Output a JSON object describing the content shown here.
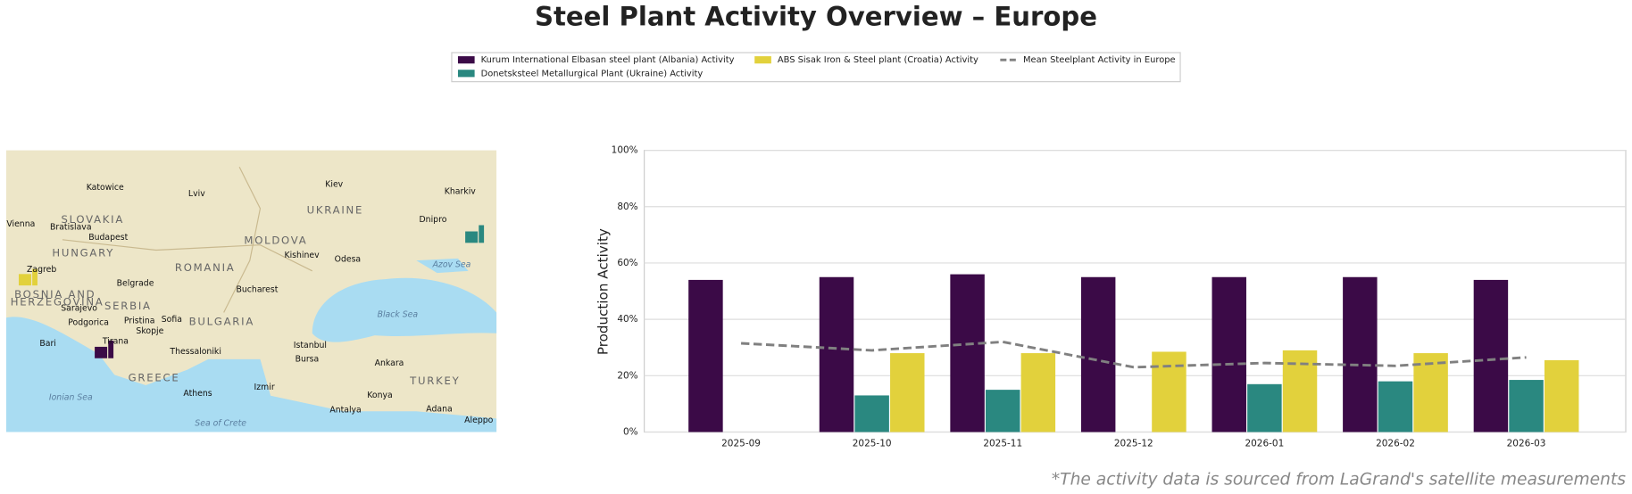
{
  "title": "Steel Plant Activity Overview – Europe",
  "footnote": "*The activity data is sourced from LaGrand's satellite measurements",
  "map": {
    "labels": [
      "Katowice",
      "Lviv",
      "Kiev",
      "Kharkiv",
      "UKRAINE",
      "SLOVAKIA",
      "Vienna",
      "Bratislava",
      "Dnipro",
      "HUNGARY",
      "Budapest",
      "MOLDOVA",
      "Kishinev",
      "Odesa",
      "ROMANIA",
      "Azov Sea",
      "Zagreb",
      "Belgrade",
      "Bucharest",
      "BOSNIA AND",
      "HERZEGOVINA",
      "Sarajevo",
      "SERBIA",
      "Sofia",
      "Black Sea",
      "BULGARIA",
      "Podgorica",
      "Pristina",
      "Skopje",
      "Tirana",
      "Bari",
      "Istanbul",
      "Thessaloniki",
      "Bursa",
      "Ankara",
      "GREECE",
      "Izmir",
      "TURKEY",
      "Ionian Sea",
      "Athens",
      "Konya",
      "Antalya",
      "Adana",
      "Sea of Crete",
      "Aleppo"
    ]
  },
  "chart_data": {
    "type": "bar",
    "y_label": "Production Activity",
    "categories": [
      "2025-09",
      "2025-10",
      "2025-11",
      "2025-12",
      "2026-01",
      "2026-02",
      "2026-03"
    ],
    "series": [
      {
        "name": "Kurum International Elbasan steel plant (Albania) Activity",
        "color": "#3b0a47",
        "values": [
          54,
          55,
          56,
          55,
          55,
          55,
          54
        ]
      },
      {
        "name": "Donetsksteel Metallurgical Plant (Ukraine) Activity",
        "color": "#2a8880",
        "values": [
          null,
          13,
          15,
          null,
          17,
          18,
          18.5
        ]
      },
      {
        "name": "ABS Sisak Iron & Steel plant (Croatia) Activity",
        "color": "#e2d13c",
        "values": [
          null,
          28,
          28,
          28.5,
          29,
          28,
          25.5
        ]
      },
      {
        "name": "Mean Steelplant Activity in Europe",
        "color": "#808080",
        "type": "line",
        "dashed": true,
        "values": [
          31.5,
          29,
          32,
          23,
          24.5,
          23.5,
          26.5
        ]
      }
    ],
    "ylim": [
      0,
      100
    ],
    "yticks": [
      {
        "value": 0,
        "label": "0%"
      },
      {
        "value": 20,
        "label": "20%"
      },
      {
        "value": 40,
        "label": "40%"
      },
      {
        "value": 60,
        "label": "60%"
      },
      {
        "value": 80,
        "label": "80%"
      },
      {
        "value": 100,
        "label": "100%"
      }
    ],
    "grid": true
  }
}
